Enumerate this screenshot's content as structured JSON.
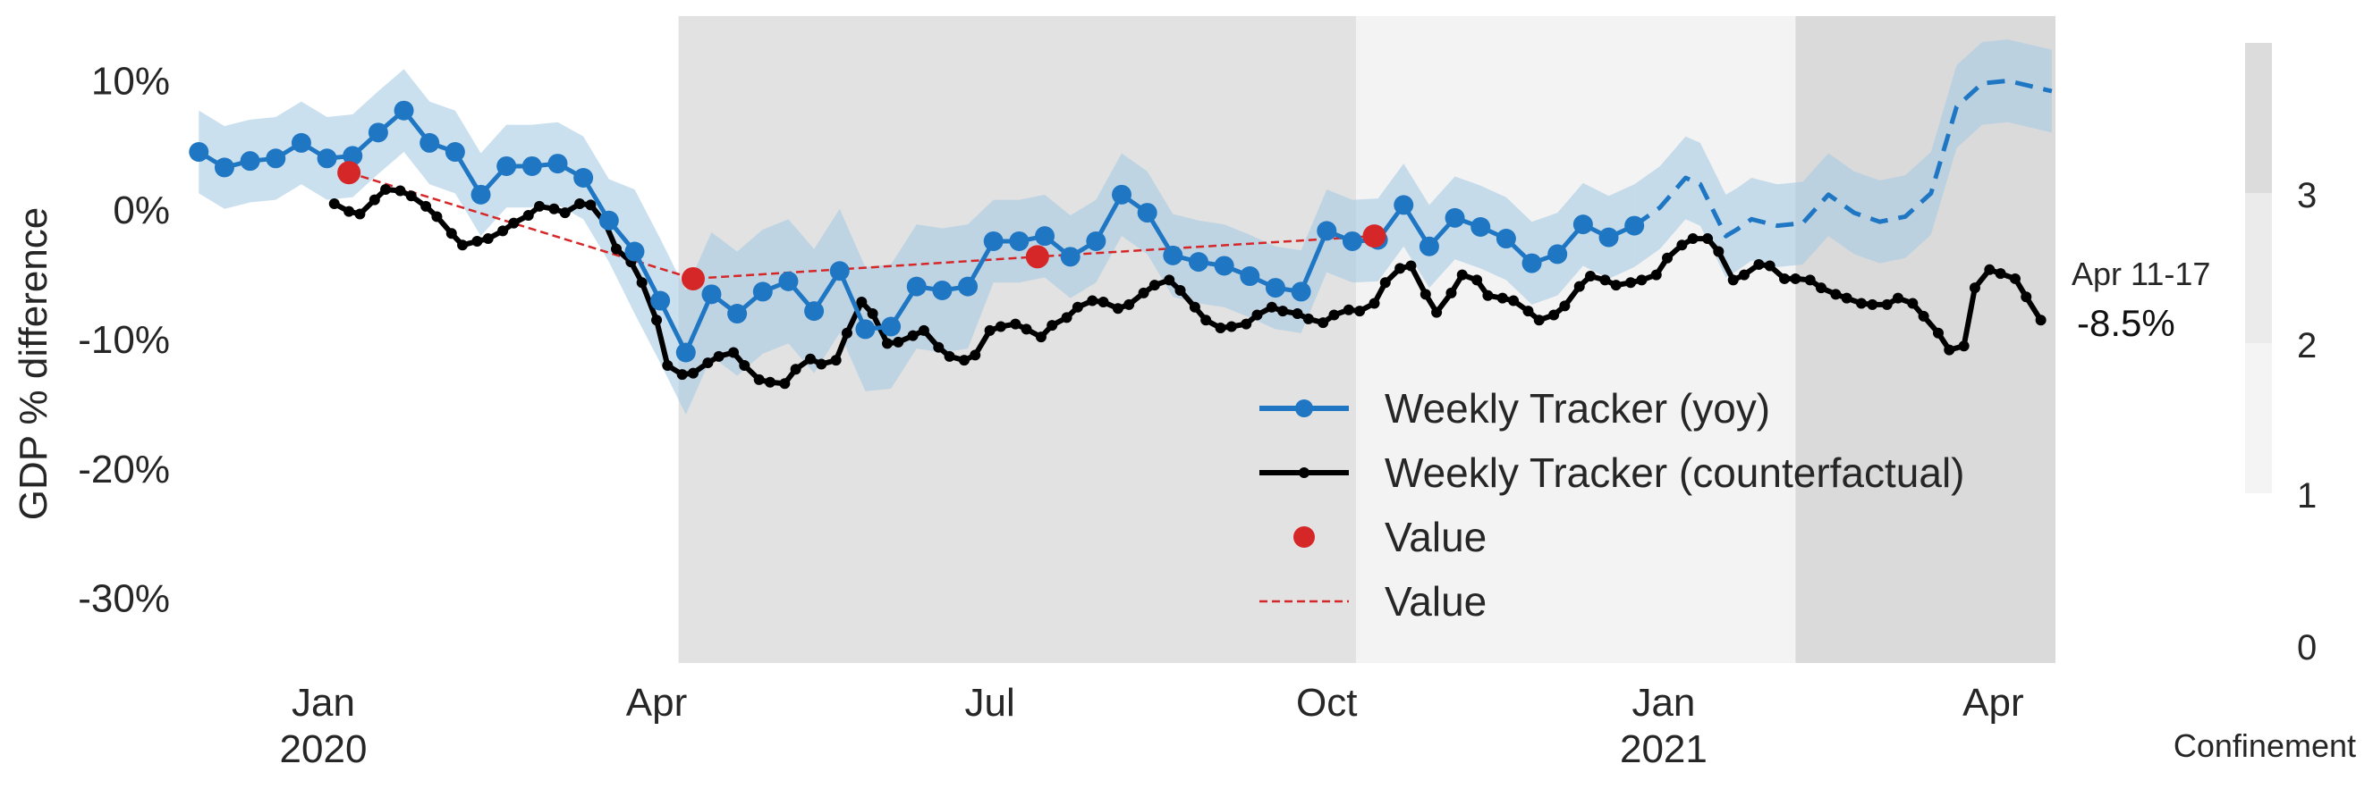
{
  "chart_data": {
    "type": "line",
    "ylabel": "GDP % difference",
    "ylim": [
      -35,
      15
    ],
    "yticks": [
      {
        "value": 10,
        "label": "10%"
      },
      {
        "value": 0,
        "label": "0%"
      },
      {
        "value": -10,
        "label": "-10%"
      },
      {
        "value": -20,
        "label": "-20%"
      },
      {
        "value": -30,
        "label": "-30%"
      }
    ],
    "xlim": [
      "2019-11-25",
      "2021-04-18"
    ],
    "xticks": [
      {
        "date": "2020-01-01",
        "label": "Jan",
        "year": "2020"
      },
      {
        "date": "2020-04-01",
        "label": "Apr",
        "year": ""
      },
      {
        "date": "2020-07-01",
        "label": "Jul",
        "year": ""
      },
      {
        "date": "2020-10-01",
        "label": "Oct",
        "year": ""
      },
      {
        "date": "2021-01-01",
        "label": "Jan",
        "year": "2021"
      },
      {
        "date": "2021-04-01",
        "label": "Apr",
        "year": ""
      }
    ],
    "grid": false,
    "legend_position": "lower-right",
    "confinement_periods": [
      {
        "start": "2020-04-07",
        "end": "2020-10-09",
        "level": 2.3
      },
      {
        "start": "2020-10-09",
        "end": "2021-02-06",
        "level": 1.0
      },
      {
        "start": "2021-02-06",
        "end": "2021-04-18",
        "level": 3.0
      }
    ],
    "colorbar": {
      "label": "Confinement",
      "ticks": [
        "0",
        "1",
        "2",
        "3"
      ],
      "range": [
        0,
        4
      ]
    },
    "series": [
      {
        "name": "Weekly Tracker (yoy)",
        "color": "#1f77c4",
        "band_color": "#a9cbe5",
        "style": "solid-markers",
        "points": [
          {
            "x": "2019-11-28",
            "y": 4.5
          },
          {
            "x": "2019-12-05",
            "y": 3.3
          },
          {
            "x": "2019-12-12",
            "y": 3.8
          },
          {
            "x": "2019-12-19",
            "y": 4.0
          },
          {
            "x": "2019-12-26",
            "y": 5.2
          },
          {
            "x": "2020-01-02",
            "y": 4.0
          },
          {
            "x": "2020-01-09",
            "y": 4.2
          },
          {
            "x": "2020-01-16",
            "y": 6.0
          },
          {
            "x": "2020-01-23",
            "y": 7.7
          },
          {
            "x": "2020-01-30",
            "y": 5.2
          },
          {
            "x": "2020-02-06",
            "y": 4.5
          },
          {
            "x": "2020-02-13",
            "y": 1.2
          },
          {
            "x": "2020-02-20",
            "y": 3.4
          },
          {
            "x": "2020-02-27",
            "y": 3.4
          },
          {
            "x": "2020-03-05",
            "y": 3.6
          },
          {
            "x": "2020-03-12",
            "y": 2.5
          },
          {
            "x": "2020-03-19",
            "y": -0.8
          },
          {
            "x": "2020-03-26",
            "y": -3.2
          },
          {
            "x": "2020-04-02",
            "y": -7.0
          },
          {
            "x": "2020-04-09",
            "y": -11.0
          },
          {
            "x": "2020-04-16",
            "y": -6.5
          },
          {
            "x": "2020-04-23",
            "y": -8.0
          },
          {
            "x": "2020-04-30",
            "y": -6.3
          },
          {
            "x": "2020-05-07",
            "y": -5.5
          },
          {
            "x": "2020-05-14",
            "y": -7.8
          },
          {
            "x": "2020-05-21",
            "y": -4.7
          },
          {
            "x": "2020-05-28",
            "y": -9.2
          },
          {
            "x": "2020-06-04",
            "y": -9.0
          },
          {
            "x": "2020-06-11",
            "y": -5.9
          },
          {
            "x": "2020-06-18",
            "y": -6.2
          },
          {
            "x": "2020-06-25",
            "y": -5.9
          },
          {
            "x": "2020-07-02",
            "y": -2.4
          },
          {
            "x": "2020-07-09",
            "y": -2.4
          },
          {
            "x": "2020-07-16",
            "y": -2.0
          },
          {
            "x": "2020-07-23",
            "y": -3.6
          },
          {
            "x": "2020-07-30",
            "y": -2.4
          },
          {
            "x": "2020-08-06",
            "y": 1.2
          },
          {
            "x": "2020-08-13",
            "y": -0.2
          },
          {
            "x": "2020-08-20",
            "y": -3.5
          },
          {
            "x": "2020-08-27",
            "y": -4.0
          },
          {
            "x": "2020-09-03",
            "y": -4.3
          },
          {
            "x": "2020-09-10",
            "y": -5.1
          },
          {
            "x": "2020-09-17",
            "y": -6.0
          },
          {
            "x": "2020-09-24",
            "y": -6.3
          },
          {
            "x": "2020-10-01",
            "y": -1.6
          },
          {
            "x": "2020-10-08",
            "y": -2.4
          },
          {
            "x": "2020-10-15",
            "y": -2.3
          },
          {
            "x": "2020-10-22",
            "y": 0.4
          },
          {
            "x": "2020-10-29",
            "y": -2.8
          },
          {
            "x": "2020-11-05",
            "y": -0.6
          },
          {
            "x": "2020-11-12",
            "y": -1.3
          },
          {
            "x": "2020-11-19",
            "y": -2.2
          },
          {
            "x": "2020-11-26",
            "y": -4.1
          },
          {
            "x": "2020-12-03",
            "y": -3.4
          },
          {
            "x": "2020-12-10",
            "y": -1.1
          },
          {
            "x": "2020-12-17",
            "y": -2.1
          },
          {
            "x": "2020-12-24",
            "y": -1.2
          }
        ]
      },
      {
        "name": "Weekly Tracker (yoy) - projection",
        "color": "#1f77c4",
        "band_color": "#a9cbe5",
        "style": "dashed",
        "points": [
          {
            "x": "2020-12-24",
            "y": -1.2
          },
          {
            "x": "2020-12-31",
            "y": 0.2
          },
          {
            "x": "2021-01-07",
            "y": 2.5
          },
          {
            "x": "2021-01-11",
            "y": 2.0
          },
          {
            "x": "2021-01-18",
            "y": -2.0
          },
          {
            "x": "2021-01-21",
            "y": -1.5
          },
          {
            "x": "2021-01-25",
            "y": -0.7
          },
          {
            "x": "2021-02-01",
            "y": -1.2
          },
          {
            "x": "2021-02-08",
            "y": -1.0
          },
          {
            "x": "2021-02-15",
            "y": 1.2
          },
          {
            "x": "2021-02-22",
            "y": -0.2
          },
          {
            "x": "2021-03-01",
            "y": -0.9
          },
          {
            "x": "2021-03-08",
            "y": -0.5
          },
          {
            "x": "2021-03-15",
            "y": 1.3
          },
          {
            "x": "2021-03-22",
            "y": 8.0
          },
          {
            "x": "2021-03-29",
            "y": 9.8
          },
          {
            "x": "2021-04-05",
            "y": 10.0
          },
          {
            "x": "2021-04-17",
            "y": 9.2
          }
        ]
      },
      {
        "name": "Weekly Tracker (counterfactual)",
        "color": "#000000",
        "style": "solid-small-markers",
        "points": [
          {
            "x": "2020-01-04",
            "y": 0.5
          },
          {
            "x": "2020-01-08",
            "y": -0.1
          },
          {
            "x": "2020-01-11",
            "y": -0.3
          },
          {
            "x": "2020-01-15",
            "y": 0.8
          },
          {
            "x": "2020-01-18",
            "y": 1.6
          },
          {
            "x": "2020-01-22",
            "y": 1.5
          },
          {
            "x": "2020-01-25",
            "y": 1.1
          },
          {
            "x": "2020-01-29",
            "y": 0.3
          },
          {
            "x": "2020-02-01",
            "y": -0.5
          },
          {
            "x": "2020-02-05",
            "y": -1.8
          },
          {
            "x": "2020-02-08",
            "y": -2.7
          },
          {
            "x": "2020-02-12",
            "y": -2.4
          },
          {
            "x": "2020-02-15",
            "y": -2.2
          },
          {
            "x": "2020-02-19",
            "y": -1.6
          },
          {
            "x": "2020-02-22",
            "y": -1.0
          },
          {
            "x": "2020-02-26",
            "y": -0.4
          },
          {
            "x": "2020-02-29",
            "y": 0.3
          },
          {
            "x": "2020-03-04",
            "y": 0.1
          },
          {
            "x": "2020-03-07",
            "y": -0.2
          },
          {
            "x": "2020-03-11",
            "y": 0.5
          },
          {
            "x": "2020-03-14",
            "y": 0.4
          },
          {
            "x": "2020-03-18",
            "y": -1.0
          },
          {
            "x": "2020-03-21",
            "y": -3.0
          },
          {
            "x": "2020-03-25",
            "y": -4.0
          },
          {
            "x": "2020-03-28",
            "y": -5.6
          },
          {
            "x": "2020-04-01",
            "y": -8.5
          },
          {
            "x": "2020-04-04",
            "y": -12.0
          },
          {
            "x": "2020-04-08",
            "y": -12.7
          },
          {
            "x": "2020-04-11",
            "y": -12.6
          },
          {
            "x": "2020-04-15",
            "y": -11.8
          },
          {
            "x": "2020-04-18",
            "y": -11.3
          },
          {
            "x": "2020-04-22",
            "y": -11.0
          },
          {
            "x": "2020-04-25",
            "y": -12.0
          },
          {
            "x": "2020-04-29",
            "y": -13.1
          },
          {
            "x": "2020-05-02",
            "y": -13.3
          },
          {
            "x": "2020-05-06",
            "y": -13.4
          },
          {
            "x": "2020-05-09",
            "y": -12.3
          },
          {
            "x": "2020-05-13",
            "y": -11.5
          },
          {
            "x": "2020-05-16",
            "y": -11.9
          },
          {
            "x": "2020-05-20",
            "y": -11.6
          },
          {
            "x": "2020-05-23",
            "y": -9.5
          },
          {
            "x": "2020-05-27",
            "y": -7.1
          },
          {
            "x": "2020-05-30",
            "y": -8.0
          },
          {
            "x": "2020-06-03",
            "y": -10.3
          },
          {
            "x": "2020-06-06",
            "y": -10.2
          },
          {
            "x": "2020-06-10",
            "y": -9.7
          },
          {
            "x": "2020-06-13",
            "y": -9.3
          },
          {
            "x": "2020-06-17",
            "y": -10.6
          },
          {
            "x": "2020-06-20",
            "y": -11.3
          },
          {
            "x": "2020-06-24",
            "y": -11.6
          },
          {
            "x": "2020-06-27",
            "y": -11.2
          },
          {
            "x": "2020-07-01",
            "y": -9.3
          },
          {
            "x": "2020-07-04",
            "y": -9.0
          },
          {
            "x": "2020-07-08",
            "y": -8.8
          },
          {
            "x": "2020-07-11",
            "y": -9.2
          },
          {
            "x": "2020-07-15",
            "y": -9.8
          },
          {
            "x": "2020-07-18",
            "y": -8.9
          },
          {
            "x": "2020-07-22",
            "y": -8.3
          },
          {
            "x": "2020-07-25",
            "y": -7.5
          },
          {
            "x": "2020-07-29",
            "y": -7.0
          },
          {
            "x": "2020-08-01",
            "y": -7.1
          },
          {
            "x": "2020-08-05",
            "y": -7.6
          },
          {
            "x": "2020-08-08",
            "y": -7.3
          },
          {
            "x": "2020-08-12",
            "y": -6.4
          },
          {
            "x": "2020-08-15",
            "y": -5.8
          },
          {
            "x": "2020-08-19",
            "y": -5.4
          },
          {
            "x": "2020-08-22",
            "y": -6.2
          },
          {
            "x": "2020-08-26",
            "y": -7.5
          },
          {
            "x": "2020-08-29",
            "y": -8.5
          },
          {
            "x": "2020-09-02",
            "y": -9.1
          },
          {
            "x": "2020-09-05",
            "y": -9.0
          },
          {
            "x": "2020-09-09",
            "y": -8.8
          },
          {
            "x": "2020-09-12",
            "y": -8.1
          },
          {
            "x": "2020-09-16",
            "y": -7.5
          },
          {
            "x": "2020-09-19",
            "y": -7.8
          },
          {
            "x": "2020-09-23",
            "y": -8.0
          },
          {
            "x": "2020-09-26",
            "y": -8.4
          },
          {
            "x": "2020-09-30",
            "y": -8.7
          },
          {
            "x": "2020-10-03",
            "y": -8.1
          },
          {
            "x": "2020-10-07",
            "y": -7.7
          },
          {
            "x": "2020-10-10",
            "y": -7.8
          },
          {
            "x": "2020-10-14",
            "y": -7.2
          },
          {
            "x": "2020-10-17",
            "y": -5.6
          },
          {
            "x": "2020-10-21",
            "y": -4.5
          },
          {
            "x": "2020-10-24",
            "y": -4.3
          },
          {
            "x": "2020-10-28",
            "y": -6.5
          },
          {
            "x": "2020-10-31",
            "y": -7.9
          },
          {
            "x": "2020-11-04",
            "y": -6.4
          },
          {
            "x": "2020-11-07",
            "y": -5.0
          },
          {
            "x": "2020-11-11",
            "y": -5.4
          },
          {
            "x": "2020-11-14",
            "y": -6.6
          },
          {
            "x": "2020-11-18",
            "y": -6.8
          },
          {
            "x": "2020-11-21",
            "y": -7.0
          },
          {
            "x": "2020-11-25",
            "y": -7.8
          },
          {
            "x": "2020-11-28",
            "y": -8.5
          },
          {
            "x": "2020-12-02",
            "y": -8.1
          },
          {
            "x": "2020-12-05",
            "y": -7.4
          },
          {
            "x": "2020-12-09",
            "y": -5.9
          },
          {
            "x": "2020-12-12",
            "y": -5.1
          },
          {
            "x": "2020-12-16",
            "y": -5.4
          },
          {
            "x": "2020-12-19",
            "y": -5.8
          },
          {
            "x": "2020-12-23",
            "y": -5.6
          },
          {
            "x": "2020-12-26",
            "y": -5.4
          },
          {
            "x": "2020-12-30",
            "y": -5.0
          },
          {
            "x": "2021-01-02",
            "y": -3.7
          },
          {
            "x": "2021-01-06",
            "y": -2.7
          },
          {
            "x": "2021-01-09",
            "y": -2.2
          },
          {
            "x": "2021-01-13",
            "y": -2.2
          },
          {
            "x": "2021-01-16",
            "y": -3.2
          },
          {
            "x": "2021-01-20",
            "y": -5.4
          },
          {
            "x": "2021-01-23",
            "y": -5.0
          },
          {
            "x": "2021-01-27",
            "y": -4.2
          },
          {
            "x": "2021-01-30",
            "y": -4.3
          },
          {
            "x": "2021-02-03",
            "y": -5.3
          },
          {
            "x": "2021-02-06",
            "y": -5.3
          },
          {
            "x": "2021-02-10",
            "y": -5.4
          },
          {
            "x": "2021-02-13",
            "y": -6.0
          },
          {
            "x": "2021-02-17",
            "y": -6.5
          },
          {
            "x": "2021-02-20",
            "y": -6.8
          },
          {
            "x": "2021-02-24",
            "y": -7.2
          },
          {
            "x": "2021-02-27",
            "y": -7.3
          },
          {
            "x": "2021-03-03",
            "y": -7.3
          },
          {
            "x": "2021-03-06",
            "y": -6.8
          },
          {
            "x": "2021-03-10",
            "y": -7.2
          },
          {
            "x": "2021-03-13",
            "y": -8.2
          },
          {
            "x": "2021-03-17",
            "y": -9.5
          },
          {
            "x": "2021-03-20",
            "y": -10.8
          },
          {
            "x": "2021-03-24",
            "y": -10.5
          },
          {
            "x": "2021-03-27",
            "y": -6.0
          },
          {
            "x": "2021-03-31",
            "y": -4.6
          },
          {
            "x": "2021-04-03",
            "y": -4.9
          },
          {
            "x": "2021-04-07",
            "y": -5.3
          },
          {
            "x": "2021-04-10",
            "y": -6.7
          },
          {
            "x": "2021-04-14",
            "y": -8.5
          }
        ]
      },
      {
        "name": "Value",
        "color": "#d62728",
        "style": "points-dashed",
        "points": [
          {
            "x": "2020-01-08",
            "y": 2.9
          },
          {
            "x": "2020-04-11",
            "y": -5.3
          },
          {
            "x": "2020-07-14",
            "y": -3.6
          },
          {
            "x": "2020-10-14",
            "y": -2.0
          }
        ]
      }
    ],
    "legend": [
      {
        "label": "Weekly Tracker (yoy)",
        "marker": "blue-line-dot"
      },
      {
        "label": "Weekly Tracker (counterfactual)",
        "marker": "black-line-dot"
      },
      {
        "label": "Value",
        "marker": "red-dot"
      },
      {
        "label": "Value",
        "marker": "red-dashed"
      }
    ],
    "annotation": {
      "date_label": "Apr 11-17",
      "value_label": "-8.5%"
    }
  }
}
